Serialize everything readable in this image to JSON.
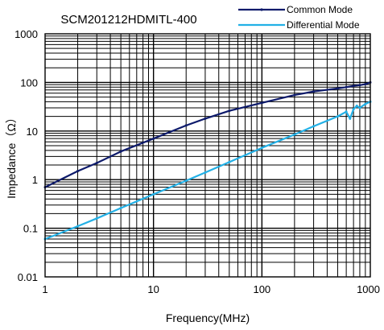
{
  "chart_data": {
    "type": "line",
    "title": "SCM201212HDMITL-400",
    "xlabel": "Frequency(MHz)",
    "ylabel": "Impedance（Ω）",
    "x_scale": "log",
    "y_scale": "log",
    "xlim": [
      1,
      1000
    ],
    "ylim": [
      0.01,
      1000
    ],
    "x_ticks": [
      1,
      10,
      100,
      1000
    ],
    "x_tick_labels": [
      "1",
      "10",
      "100",
      "1000"
    ],
    "y_ticks": [
      0.01,
      0.1,
      1,
      10,
      100,
      1000
    ],
    "y_tick_labels": [
      "0.01",
      "0.1",
      "1",
      "10",
      "100",
      "1000"
    ],
    "grid": true,
    "legend_position": "top-right",
    "series": [
      {
        "name": "Common Mode",
        "color": "#0d1a6b",
        "x": [
          1,
          2,
          3,
          5,
          10,
          20,
          30,
          50,
          100,
          200,
          300,
          500,
          600,
          700,
          800,
          900,
          1000
        ],
        "y": [
          0.7,
          1.5,
          2.2,
          3.8,
          7,
          13,
          18,
          26,
          38,
          55,
          65,
          75,
          80,
          85,
          88,
          92,
          100
        ]
      },
      {
        "name": "Differential Mode",
        "color": "#22b0e6",
        "x": [
          1,
          2,
          3,
          5,
          10,
          20,
          30,
          50,
          100,
          200,
          300,
          500,
          600,
          650,
          700,
          750,
          800,
          900,
          1000
        ],
        "y": [
          0.06,
          0.11,
          0.16,
          0.26,
          0.5,
          0.95,
          1.4,
          2.3,
          4.5,
          8.5,
          12.5,
          20,
          25,
          18,
          28,
          33,
          30,
          36,
          40
        ]
      }
    ]
  }
}
